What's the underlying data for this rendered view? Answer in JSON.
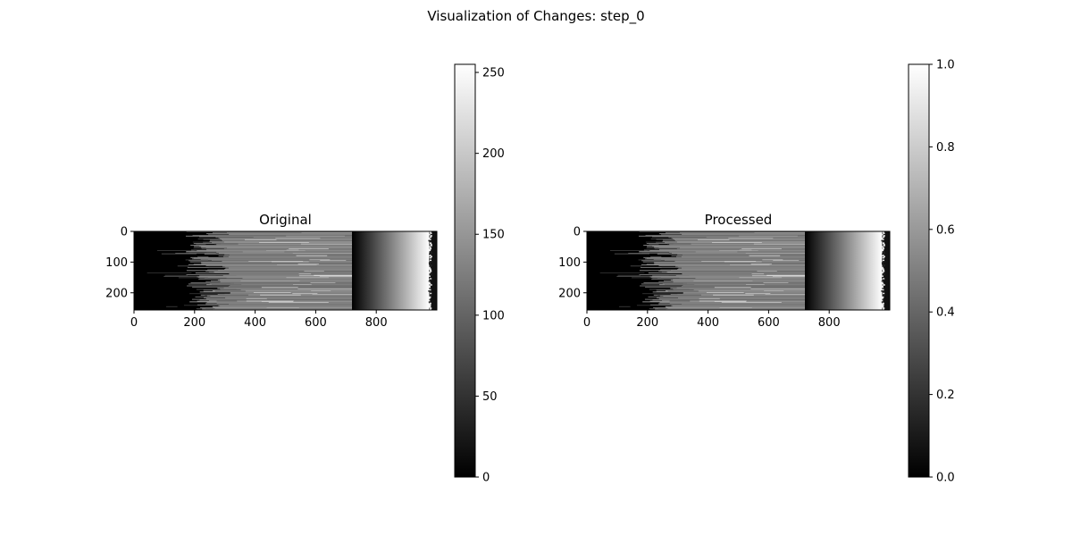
{
  "figure": {
    "title": "Visualization of Changes: step_0"
  },
  "chart_data": [
    {
      "type": "heatmap",
      "title": "Original",
      "colormap": "gray",
      "image_size": [
        256,
        1000
      ],
      "x_ticks": [
        0,
        200,
        400,
        600,
        800
      ],
      "y_ticks": [
        0,
        100,
        200
      ],
      "xlim": [
        0,
        1000
      ],
      "ylim": [
        256,
        0
      ],
      "colorbar": {
        "min": 0,
        "max": 255,
        "ticks": [
          0,
          50,
          100,
          150,
          200,
          250
        ]
      },
      "image_structure": {
        "dark_region": [
          0,
          190
        ],
        "mixed_region": [
          190,
          720
        ],
        "gradient_region": [
          720,
          975
        ],
        "edge_region": [
          975,
          1000
        ]
      }
    },
    {
      "type": "heatmap",
      "title": "Processed",
      "colormap": "gray",
      "image_size": [
        256,
        1000
      ],
      "x_ticks": [
        0,
        200,
        400,
        600,
        800
      ],
      "y_ticks": [
        0,
        100,
        200
      ],
      "xlim": [
        0,
        1000
      ],
      "ylim": [
        256,
        0
      ],
      "colorbar": {
        "min": 0.0,
        "max": 1.0,
        "ticks": [
          "0.0",
          "0.2",
          "0.4",
          "0.6",
          "0.8",
          "1.0"
        ]
      },
      "image_structure": {
        "dark_region": [
          0,
          190
        ],
        "mixed_region": [
          190,
          720
        ],
        "gradient_region": [
          720,
          975
        ],
        "edge_region": [
          975,
          1000
        ]
      }
    }
  ]
}
